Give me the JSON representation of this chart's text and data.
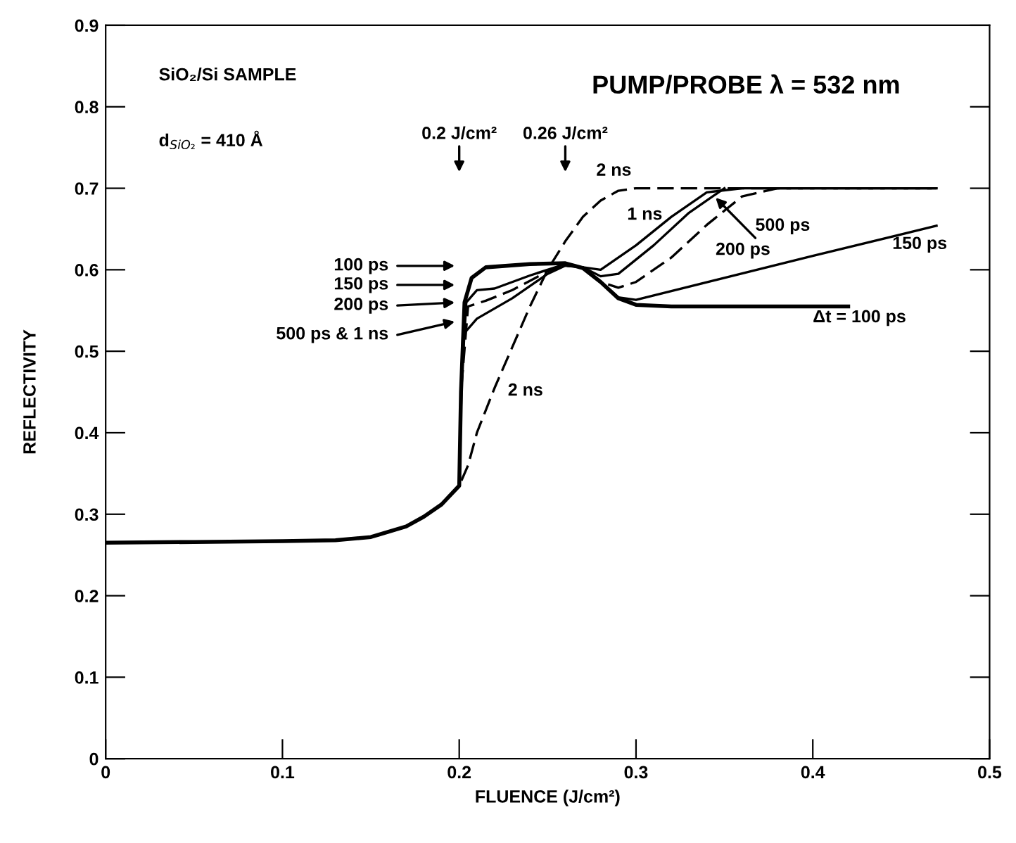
{
  "chart_data": {
    "type": "line",
    "xlabel": "FLUENCE (J/cm²)",
    "ylabel": "REFLECTIVITY",
    "xlim": [
      0,
      0.5
    ],
    "ylim": [
      0,
      0.9
    ],
    "xticks": [
      0,
      0.1,
      0.2,
      0.3,
      0.4,
      0.5
    ],
    "yticks": [
      0,
      0.1,
      0.2,
      0.3,
      0.4,
      0.5,
      0.6,
      0.7,
      0.8,
      0.9
    ],
    "grid": false,
    "legend": false,
    "marker": "none",
    "series": [
      {
        "color": "#000000",
        "line_style": "solid",
        "x": [
          0,
          0.05,
          0.1,
          0.13,
          0.15,
          0.17,
          0.18,
          0.19,
          0.2,
          0.201,
          0.203,
          0.207,
          0.215,
          0.24,
          0.26,
          0.27,
          0.28,
          0.29,
          0.3,
          0.32,
          0.42
        ],
        "values": [
          0.265,
          0.266,
          0.267,
          0.268,
          0.272,
          0.285,
          0.297,
          0.312,
          0.335,
          0.45,
          0.56,
          0.59,
          0.603,
          0.607,
          0.608,
          0.602,
          0.585,
          0.565,
          0.557,
          0.555,
          0.555
        ]
      },
      {
        "color": "#000000",
        "line_style": "solid",
        "x": [
          0,
          0.05,
          0.1,
          0.13,
          0.15,
          0.17,
          0.18,
          0.19,
          0.2,
          0.201,
          0.204,
          0.21,
          0.22,
          0.24,
          0.26,
          0.27,
          0.28,
          0.29,
          0.3,
          0.35,
          0.4,
          0.47
        ],
        "values": [
          0.265,
          0.266,
          0.267,
          0.268,
          0.272,
          0.285,
          0.297,
          0.312,
          0.335,
          0.45,
          0.56,
          0.575,
          0.577,
          0.593,
          0.607,
          0.602,
          0.585,
          0.566,
          0.563,
          0.59,
          0.617,
          0.654
        ]
      },
      {
        "color": "#000000",
        "line_style": "dashed",
        "x": [
          0,
          0.05,
          0.1,
          0.13,
          0.15,
          0.17,
          0.18,
          0.19,
          0.2,
          0.201,
          0.205,
          0.215,
          0.23,
          0.25,
          0.26,
          0.27,
          0.28,
          0.29,
          0.3,
          0.32,
          0.34,
          0.36,
          0.38,
          0.47
        ],
        "values": [
          0.265,
          0.266,
          0.267,
          0.268,
          0.272,
          0.285,
          0.297,
          0.312,
          0.335,
          0.45,
          0.555,
          0.562,
          0.575,
          0.598,
          0.605,
          0.603,
          0.585,
          0.578,
          0.585,
          0.615,
          0.655,
          0.69,
          0.7,
          0.7
        ]
      },
      {
        "color": "#000000",
        "line_style": "solid",
        "x": [
          0,
          0.05,
          0.1,
          0.13,
          0.15,
          0.17,
          0.18,
          0.19,
          0.2,
          0.202,
          0.21,
          0.23,
          0.25,
          0.26,
          0.27,
          0.28,
          0.29,
          0.31,
          0.33,
          0.35
        ],
        "values": [
          0.265,
          0.266,
          0.267,
          0.268,
          0.272,
          0.285,
          0.297,
          0.312,
          0.335,
          0.52,
          0.54,
          0.565,
          0.595,
          0.605,
          0.603,
          0.592,
          0.595,
          0.63,
          0.67,
          0.7
        ]
      },
      {
        "color": "#000000",
        "line_style": "solid",
        "x": [
          0.27,
          0.28,
          0.3,
          0.32,
          0.34,
          0.36,
          0.47
        ],
        "values": [
          0.603,
          0.6,
          0.63,
          0.665,
          0.695,
          0.7,
          0.7
        ]
      },
      {
        "color": "#000000",
        "line_style": "dashed",
        "x": [
          0,
          0.05,
          0.1,
          0.13,
          0.15,
          0.17,
          0.18,
          0.19,
          0.2,
          0.205,
          0.21,
          0.22,
          0.23,
          0.24,
          0.25,
          0.26,
          0.27,
          0.28,
          0.29,
          0.3,
          0.47
        ],
        "values": [
          0.265,
          0.266,
          0.267,
          0.268,
          0.272,
          0.285,
          0.297,
          0.312,
          0.335,
          0.36,
          0.4,
          0.455,
          0.505,
          0.555,
          0.6,
          0.635,
          0.665,
          0.685,
          0.697,
          0.7,
          0.7
        ]
      }
    ],
    "annotations": [
      "SiO₂/Si SAMPLE",
      "d$_{SiO₂}$ = 410 Å",
      "PUMP/PROBE λ = 532 nm",
      "0.2 J/cm²",
      "0.26 J/cm²",
      "2 ns",
      "1 ns",
      "500 ps",
      "200 ps",
      "150 ps",
      "Δt = 100 ps",
      "2 ns",
      "100 ps",
      "150 ps",
      "200 ps",
      "500 ps & 1 ns"
    ]
  }
}
